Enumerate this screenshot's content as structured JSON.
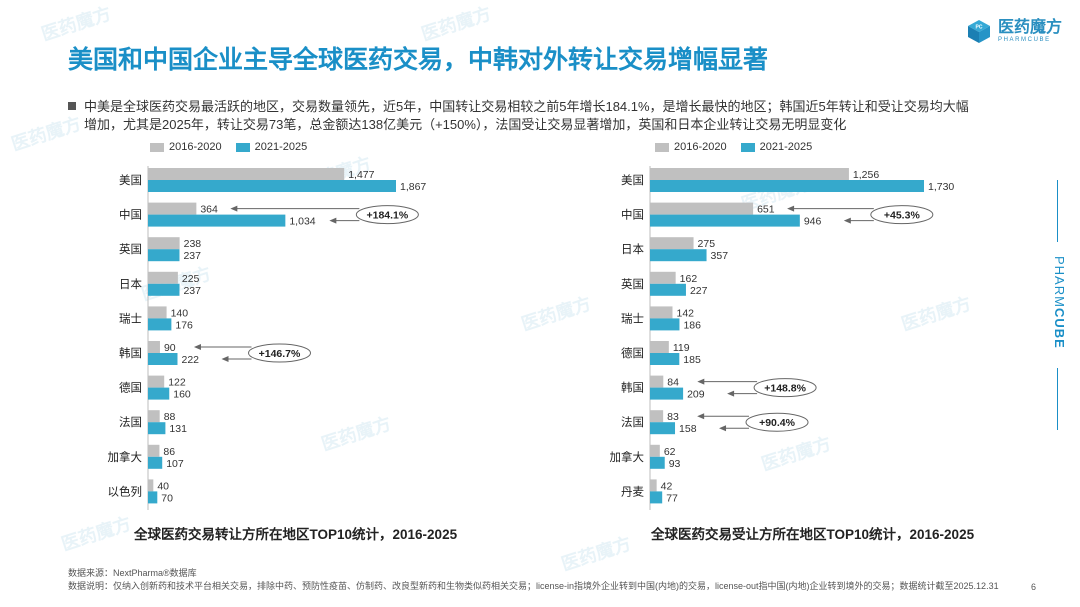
{
  "title": "美国和中国企业主导全球医药交易，中韩对外转让交易增幅显著",
  "logo": {
    "name": "医药魔方",
    "sub": "PHARMCUBE",
    "icon": "cube-logo-icon",
    "accent": "#1a8fc7"
  },
  "bullet": {
    "line1": "中美是全球医药交易最活跃的地区，交易数量领先，近5年，中国转让交易相较之前5年增长184.1%，是增长最快的地区；韩国近5年转让和受让交易均大幅",
    "line2": "增加，尤其是2025年，转让交易73笔，总金额达138亿美元（+150%），法国受让交易显著增加，英国和日本企业转让交易无明显变化"
  },
  "colors": {
    "series1": "#c0c0c0",
    "series2": "#35a9cc"
  },
  "side_brand": {
    "light": "PHARM",
    "bold": "CUBE"
  },
  "footer": {
    "source": "数据来源：NextPharma®数据库",
    "note": "数据说明：仅纳入创新药和技术平台相关交易，排除中药、预防性疫苗、仿制药、改良型新药和生物类似药相关交易；license-in指境外企业转到中国(内地)的交易，license-out指中国(内地)企业转到境外的交易；数据统计截至2025.12.31",
    "page": "6"
  },
  "chart_data": [
    {
      "type": "bar",
      "orientation": "horizontal",
      "title": "全球医药交易转让方所在地区TOP10统计，2016-2025",
      "categories": [
        "美国",
        "中国",
        "英国",
        "日本",
        "瑞士",
        "韩国",
        "德国",
        "法国",
        "加拿大",
        "以色列"
      ],
      "series": [
        {
          "name": "2016-2020",
          "values": [
            1477,
            364,
            238,
            225,
            140,
            90,
            122,
            88,
            86,
            40
          ],
          "labels": [
            "1,477",
            "364",
            "238",
            "225",
            "140",
            "90",
            "122",
            "88",
            "86",
            "40"
          ]
        },
        {
          "name": "2021-2025",
          "values": [
            1867,
            1034,
            237,
            237,
            176,
            222,
            160,
            131,
            107,
            70
          ],
          "labels": [
            "1,867",
            "1,034",
            "237",
            "237",
            "176",
            "222",
            "160",
            "131",
            "107",
            "70"
          ]
        }
      ],
      "annotations": [
        {
          "category": "中国",
          "text": "+184.1%"
        },
        {
          "category": "韩国",
          "text": "+146.7%"
        }
      ],
      "xlim": [
        0,
        1867
      ]
    },
    {
      "type": "bar",
      "orientation": "horizontal",
      "title": "全球医药交易受让方所在地区TOP10统计，2016-2025",
      "categories": [
        "美国",
        "中国",
        "日本",
        "英国",
        "瑞士",
        "德国",
        "韩国",
        "法国",
        "加拿大",
        "丹麦"
      ],
      "series": [
        {
          "name": "2016-2020",
          "values": [
            1256,
            651,
            275,
            162,
            142,
            119,
            84,
            83,
            62,
            42
          ],
          "labels": [
            "1,256",
            "651",
            "275",
            "162",
            "142",
            "119",
            "84",
            "83",
            "62",
            "42"
          ]
        },
        {
          "name": "2021-2025",
          "values": [
            1730,
            946,
            357,
            227,
            186,
            185,
            209,
            158,
            93,
            77
          ],
          "labels": [
            "1,730",
            "946",
            "357",
            "227",
            "186",
            "185",
            "209",
            "158",
            "93",
            "77"
          ]
        }
      ],
      "annotations": [
        {
          "category": "中国",
          "text": "+45.3%"
        },
        {
          "category": "韩国",
          "text": "+148.8%"
        },
        {
          "category": "法国",
          "text": "+90.4%"
        }
      ],
      "xlim": [
        0,
        1730
      ]
    }
  ]
}
